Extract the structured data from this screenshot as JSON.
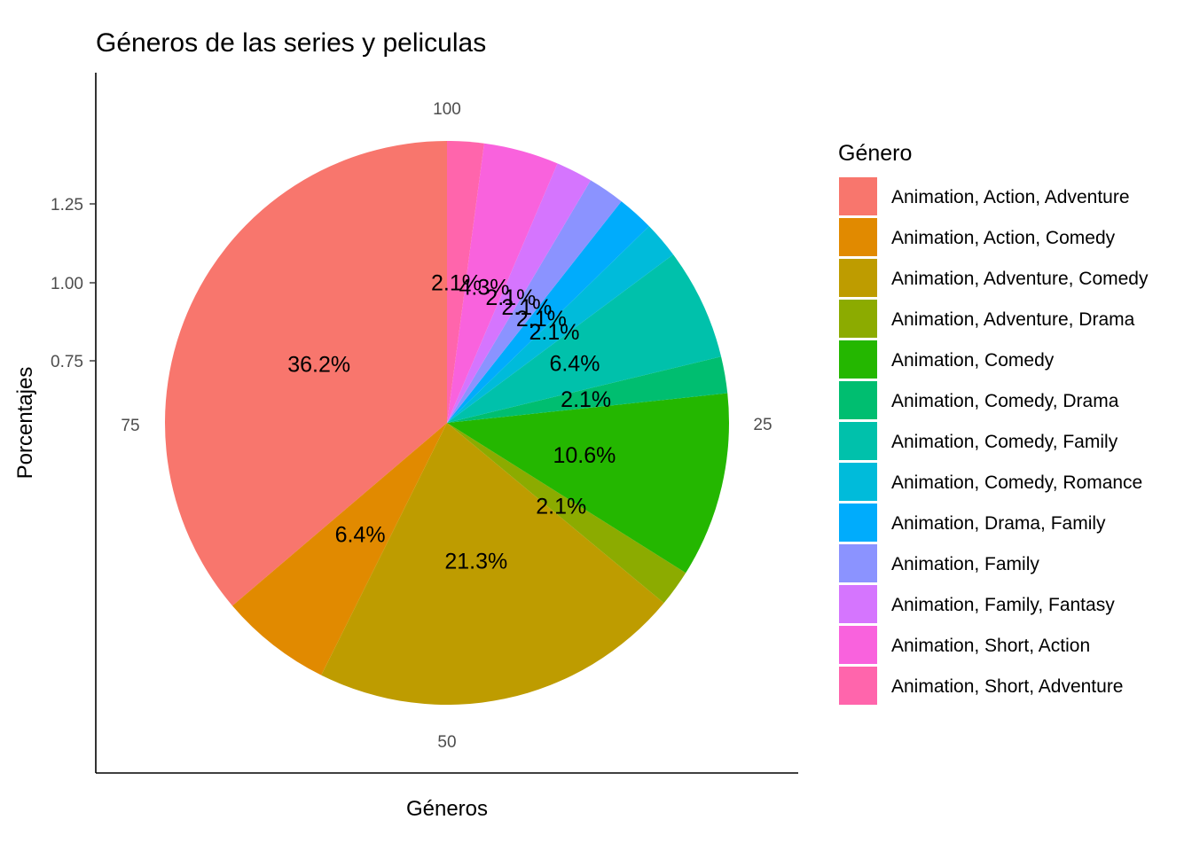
{
  "chart_data": {
    "type": "pie",
    "title": "Géneros de las series y peliculas",
    "xlabel": "Géneros",
    "ylabel": "Porcentajes",
    "y_ticks": [
      "0.75",
      "1.00",
      "1.25"
    ],
    "theta_ticks": [
      {
        "value": 100,
        "label": "100"
      },
      {
        "value": 25,
        "label": "25"
      },
      {
        "value": 50,
        "label": "50"
      },
      {
        "value": 75,
        "label": "75"
      }
    ],
    "legend_title": "Género",
    "legend_position": "right",
    "slices": [
      {
        "name": "Animation, Action, Adventure",
        "value": 36.2,
        "label": "36.2%",
        "color": "#F8766D"
      },
      {
        "name": "Animation, Action, Comedy",
        "value": 6.4,
        "label": "6.4%",
        "color": "#E18A00"
      },
      {
        "name": "Animation, Adventure, Comedy",
        "value": 21.3,
        "label": "21.3%",
        "color": "#BE9C00"
      },
      {
        "name": "Animation, Adventure, Drama",
        "value": 2.1,
        "label": "2.1%",
        "color": "#8CAB00"
      },
      {
        "name": "Animation, Comedy",
        "value": 10.6,
        "label": "10.6%",
        "color": "#24B700"
      },
      {
        "name": "Animation, Comedy, Drama",
        "value": 2.1,
        "label": "2.1%",
        "color": "#00BE70"
      },
      {
        "name": "Animation, Comedy, Family",
        "value": 6.4,
        "label": "6.4%",
        "color": "#00C1AB"
      },
      {
        "name": "Animation, Comedy, Romance",
        "value": 2.1,
        "label": "2.1%",
        "color": "#00BBDA"
      },
      {
        "name": "Animation, Drama, Family",
        "value": 2.1,
        "label": "2.1%",
        "color": "#00ACFC"
      },
      {
        "name": "Animation, Family",
        "value": 2.1,
        "label": "2.1%",
        "color": "#8B93FF"
      },
      {
        "name": "Animation, Family, Fantasy",
        "value": 2.1,
        "label": "2.1%",
        "color": "#D575FE"
      },
      {
        "name": "Animation, Short, Action",
        "value": 4.3,
        "label": "4.3%",
        "color": "#F962DD"
      },
      {
        "name": "Animation, Short, Adventure",
        "value": 2.1,
        "label": "2.1%",
        "color": "#FF65AC"
      }
    ]
  }
}
